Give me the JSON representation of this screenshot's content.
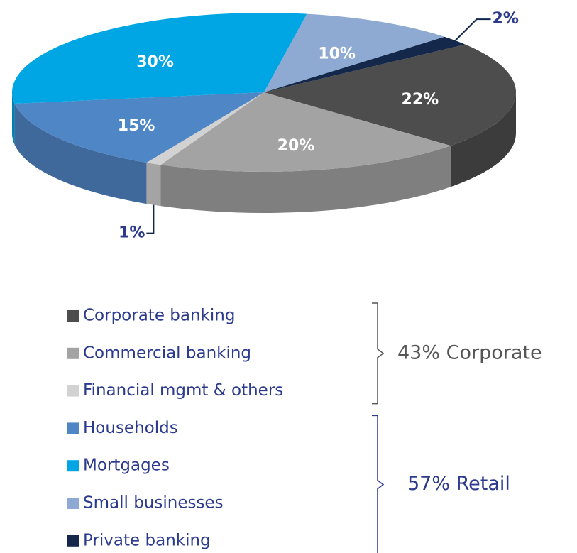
{
  "chart_data": {
    "type": "pie",
    "categories": [
      "Corporate banking",
      "Commercial banking",
      "Financial mgmt & others",
      "Households",
      "Mortgages",
      "Small businesses",
      "Private banking"
    ],
    "values": [
      22,
      20,
      1,
      15,
      30,
      10,
      2
    ],
    "value_labels": [
      "22%",
      "20%",
      "1%",
      "15%",
      "30%",
      "10%",
      "2%"
    ],
    "colors": [
      "#4d4d4d",
      "#a3a3a3",
      "#d2d2d2",
      "#4f86c6",
      "#00a6e4",
      "#8eaad3",
      "#13284a"
    ],
    "groups": [
      {
        "label": "43% Corporate",
        "color": "#555555",
        "members": [
          "Corporate banking",
          "Commercial banking",
          "Financial mgmt & others"
        ]
      },
      {
        "label": "57% Retail",
        "color": "#2b3a8c",
        "members": [
          "Households",
          "Mortgages",
          "Small businesses",
          "Private banking"
        ]
      }
    ]
  }
}
